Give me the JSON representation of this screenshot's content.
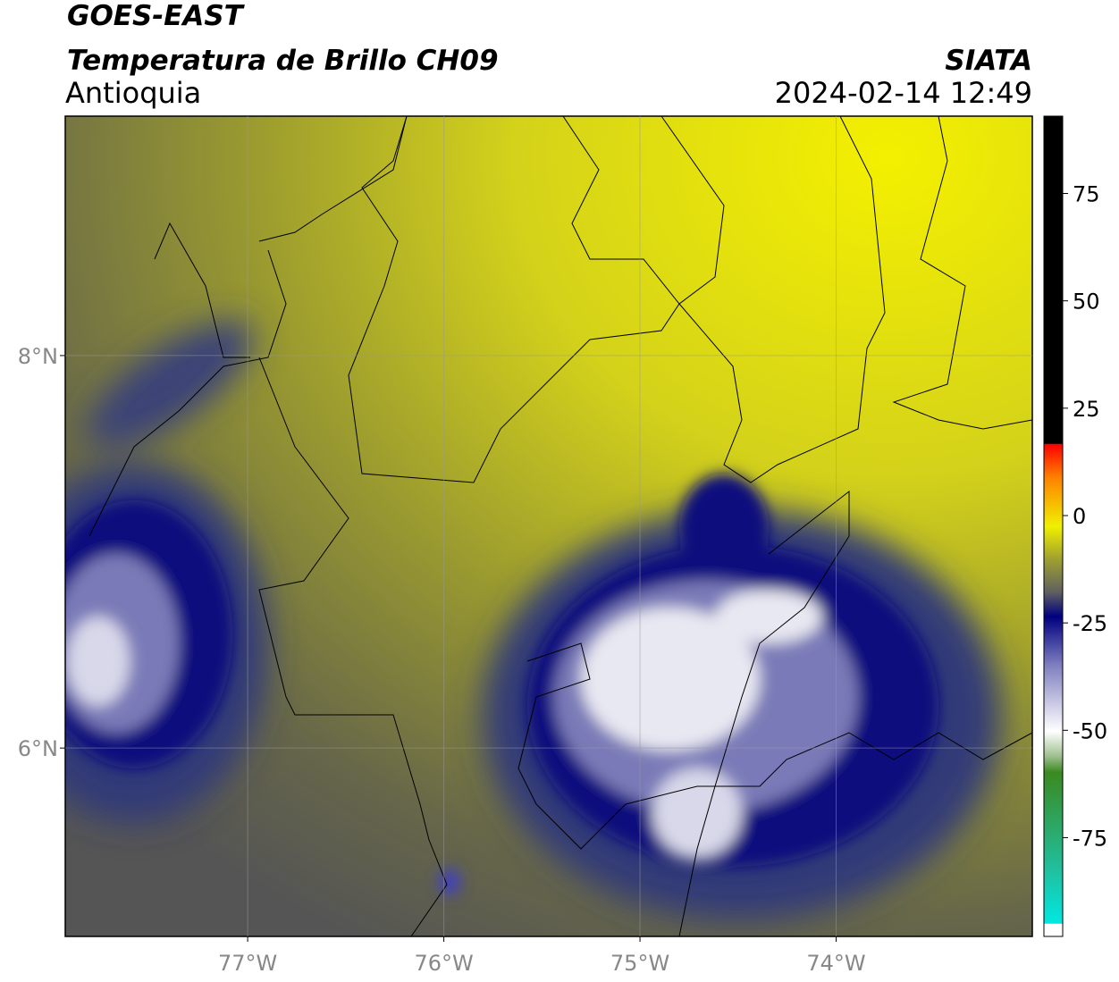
{
  "header": {
    "title": "GOES-EAST",
    "subtitle": "Temperatura de Brillo CH09",
    "region": "Antioquia",
    "source": "SIATA",
    "datetime": "2024-02-14 12:49"
  },
  "map": {
    "latlim": [
      5.04,
      9.22
    ],
    "lonlim": [
      -77.93,
      -73.0
    ],
    "lat_ticks": [
      {
        "value": 8,
        "label": "8°N"
      },
      {
        "value": 6,
        "label": "6°N"
      }
    ],
    "lon_ticks": [
      {
        "value": -77,
        "label": "77°W"
      },
      {
        "value": -76,
        "label": "76°W"
      },
      {
        "value": -75,
        "label": "75°W"
      },
      {
        "value": -74,
        "label": "74°W"
      }
    ],
    "grid": true
  },
  "colorbar": {
    "lim": [
      -98,
      93
    ],
    "ticks": [
      75,
      50,
      25,
      0,
      -25,
      -50,
      -75
    ]
  }
}
